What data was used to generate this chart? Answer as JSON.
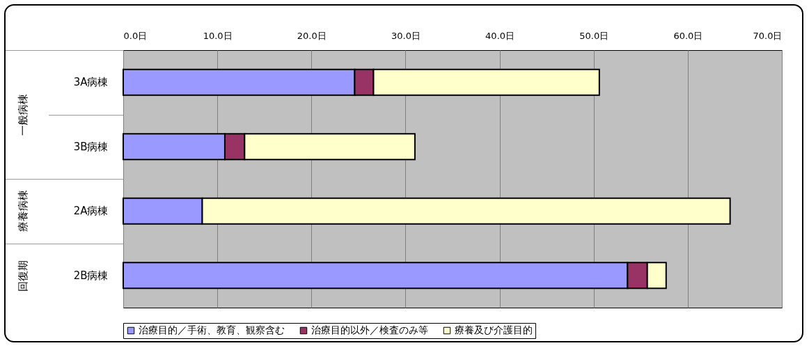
{
  "chart_data": {
    "type": "bar",
    "orientation": "horizontal",
    "stacked": true,
    "categories": [
      "3A病棟",
      "3B病棟",
      "2A病棟",
      "2B病棟"
    ],
    "series": [
      {
        "name": "治療目的／手術、教育、観察含む",
        "color": "#9999ff",
        "values": [
          24.6,
          10.8,
          8.4,
          53.6
        ]
      },
      {
        "name": "治療目的以外／検査のみ等",
        "color": "#993366",
        "values": [
          2.0,
          2.1,
          null,
          2.1
        ]
      },
      {
        "name": "療養及び介護目的",
        "color": "#ffffcc",
        "values": [
          24.0,
          18.1,
          56.1,
          2.0
        ]
      }
    ],
    "xlim": [
      0,
      70
    ],
    "xticks": [
      {
        "value": 0,
        "label": "0.0日"
      },
      {
        "value": 10,
        "label": "10.0日"
      },
      {
        "value": 20,
        "label": "20.0日"
      },
      {
        "value": 30,
        "label": "30.0日"
      },
      {
        "value": 40,
        "label": "40.0日"
      },
      {
        "value": 50,
        "label": "50.0日"
      },
      {
        "value": 60,
        "label": "60.0日"
      },
      {
        "value": 70,
        "label": "70.0日"
      }
    ],
    "annotations": [
      "一般病棟",
      "療養病棟",
      "回復期"
    ],
    "grid": "x",
    "legend": "bottom"
  }
}
